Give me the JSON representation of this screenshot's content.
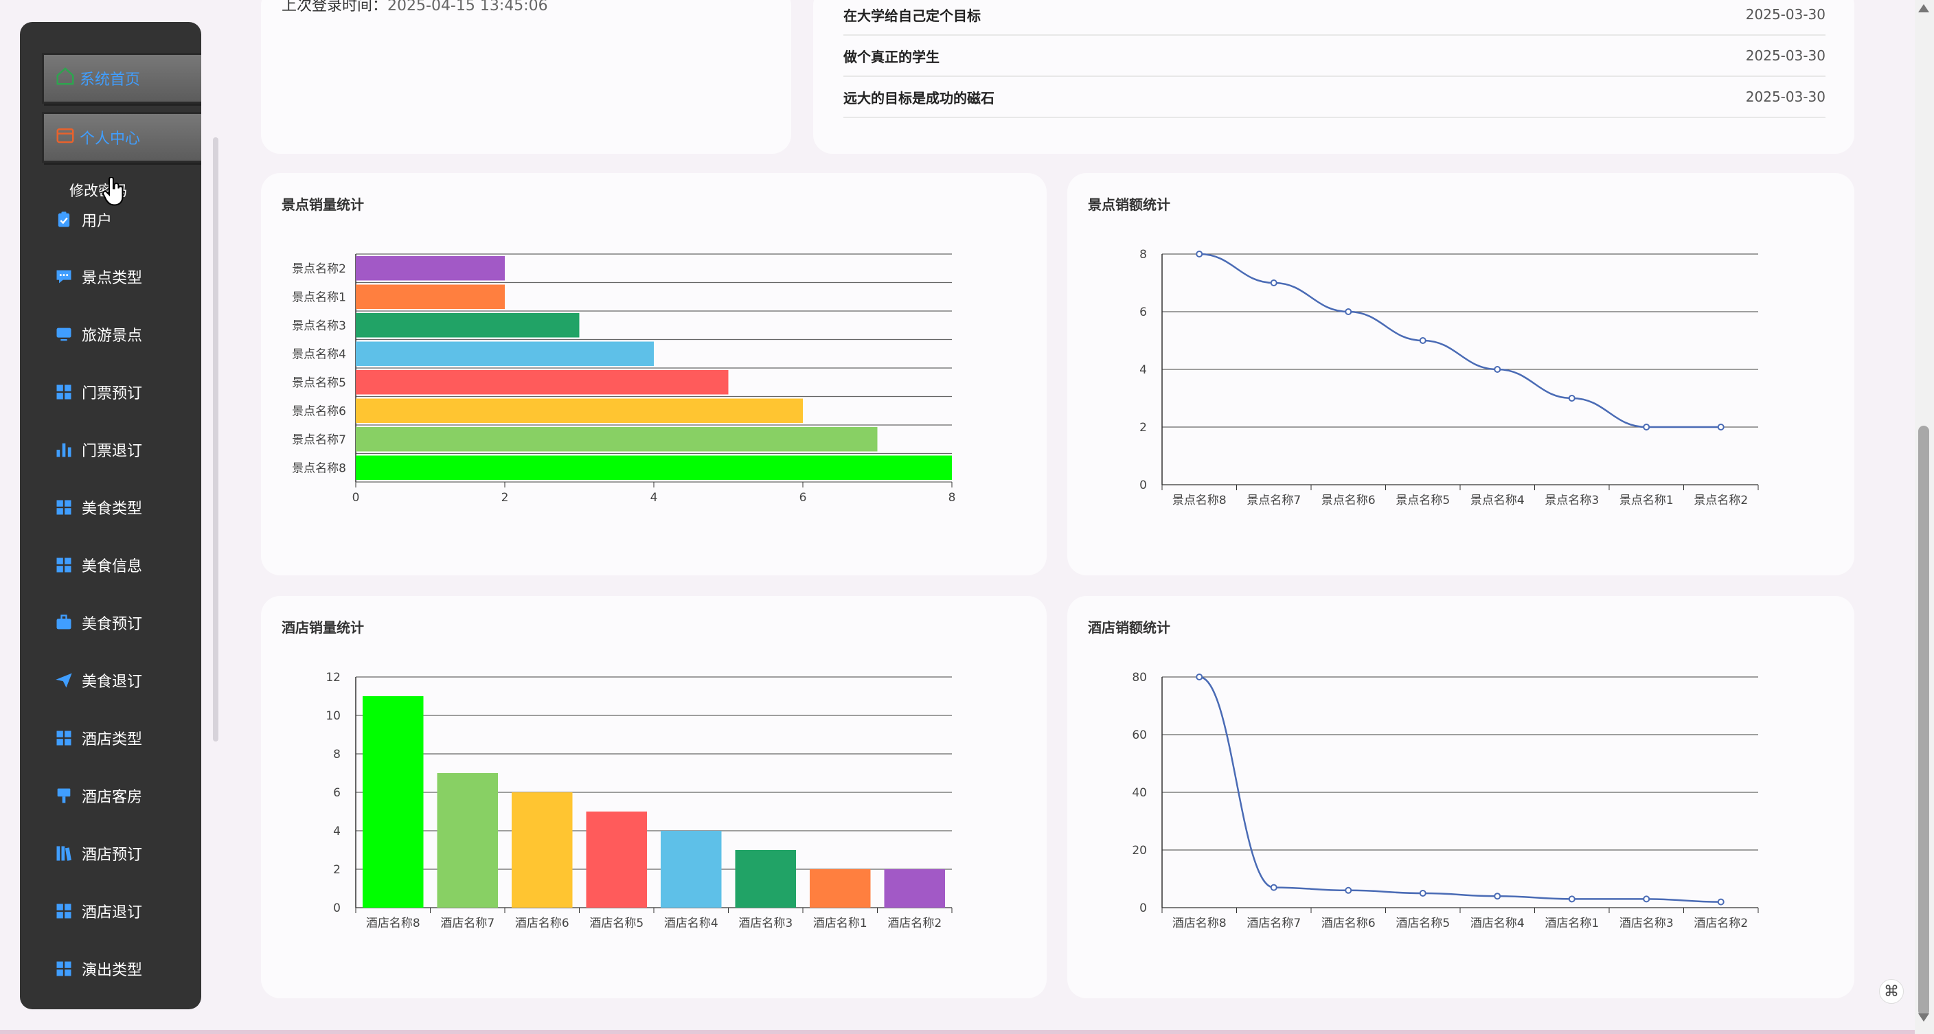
{
  "sidebar": {
    "top_buttons": [
      {
        "label": "系统首页",
        "icon": "home-icon",
        "color": "#2ea44f"
      },
      {
        "label": "个人中心",
        "icon": "wallet-icon",
        "color": "#e8622c"
      }
    ],
    "sub_item": "修改密码",
    "items": [
      {
        "label": "用户",
        "icon": "clipboard-check-icon"
      },
      {
        "label": "景点类型",
        "icon": "chat-icon"
      },
      {
        "label": "旅游景点",
        "icon": "monitor-icon"
      },
      {
        "label": "门票预订",
        "icon": "grid-icon"
      },
      {
        "label": "门票退订",
        "icon": "bar-chart-icon"
      },
      {
        "label": "美食类型",
        "icon": "grid-icon"
      },
      {
        "label": "美食信息",
        "icon": "grid-icon"
      },
      {
        "label": "美食预订",
        "icon": "briefcase-icon"
      },
      {
        "label": "美食退订",
        "icon": "send-icon"
      },
      {
        "label": "酒店类型",
        "icon": "grid-icon"
      },
      {
        "label": "酒店客房",
        "icon": "brush-icon"
      },
      {
        "label": "酒店预订",
        "icon": "library-icon"
      },
      {
        "label": "酒店退订",
        "icon": "grid-icon"
      },
      {
        "label": "演出类型",
        "icon": "grid-icon"
      }
    ],
    "accent": "#409eff"
  },
  "login": {
    "label": "上次登录时间：",
    "value": "2025-04-15 13:45:06"
  },
  "news": [
    {
      "title": "在大学给自己定个目标",
      "date": "2025-03-30"
    },
    {
      "title": "做个真正的学生",
      "date": "2025-03-30"
    },
    {
      "title": "远大的目标是成功的磁石",
      "date": "2025-03-30"
    }
  ],
  "chart_data": [
    {
      "type": "bar",
      "orientation": "horizontal",
      "title": "景点销量统计",
      "categories": [
        "景点名称2",
        "景点名称1",
        "景点名称3",
        "景点名称4",
        "景点名称5",
        "景点名称6",
        "景点名称7",
        "景点名称8"
      ],
      "values": [
        2,
        2,
        3,
        4,
        5,
        6,
        7,
        8
      ],
      "colors": [
        "#a259c6",
        "#ff7f3f",
        "#21a366",
        "#5ec0e8",
        "#ff5b5b",
        "#ffc531",
        "#88d064",
        "#00ff00"
      ],
      "xlim": [
        0,
        8
      ],
      "ticks": [
        0,
        2,
        4,
        6,
        8
      ],
      "grid": true
    },
    {
      "type": "line",
      "title": "景点销额统计",
      "categories": [
        "景点名称8",
        "景点名称7",
        "景点名称6",
        "景点名称5",
        "景点名称4",
        "景点名称3",
        "景点名称1",
        "景点名称2"
      ],
      "values": [
        8,
        7,
        6,
        5,
        4,
        3,
        2,
        2
      ],
      "color": "#4a6bb5",
      "ylim": [
        0,
        8
      ],
      "ticks": [
        0,
        2,
        4,
        6,
        8
      ],
      "grid": true
    },
    {
      "type": "bar",
      "orientation": "vertical",
      "title": "酒店销量统计",
      "categories": [
        "酒店名称8",
        "酒店名称7",
        "酒店名称6",
        "酒店名称5",
        "酒店名称4",
        "酒店名称3",
        "酒店名称1",
        "酒店名称2"
      ],
      "values": [
        11,
        7,
        6,
        5,
        4,
        3,
        2,
        2
      ],
      "colors": [
        "#00ff00",
        "#88d064",
        "#ffc531",
        "#ff5b5b",
        "#5ec0e8",
        "#21a366",
        "#ff7f3f",
        "#a259c6"
      ],
      "ylim": [
        0,
        12
      ],
      "ticks": [
        0,
        2,
        4,
        6,
        8,
        10,
        12
      ],
      "grid": true
    },
    {
      "type": "line",
      "title": "酒店销额统计",
      "categories": [
        "酒店名称8",
        "酒店名称7",
        "酒店名称6",
        "酒店名称5",
        "酒店名称4",
        "酒店名称1",
        "酒店名称3",
        "酒店名称2"
      ],
      "values": [
        80,
        7,
        6,
        5,
        4,
        3,
        3,
        2
      ],
      "color": "#4a6bb5",
      "ylim": [
        0,
        80
      ],
      "ticks": [
        0,
        20,
        40,
        60,
        80
      ],
      "grid": true
    }
  ]
}
